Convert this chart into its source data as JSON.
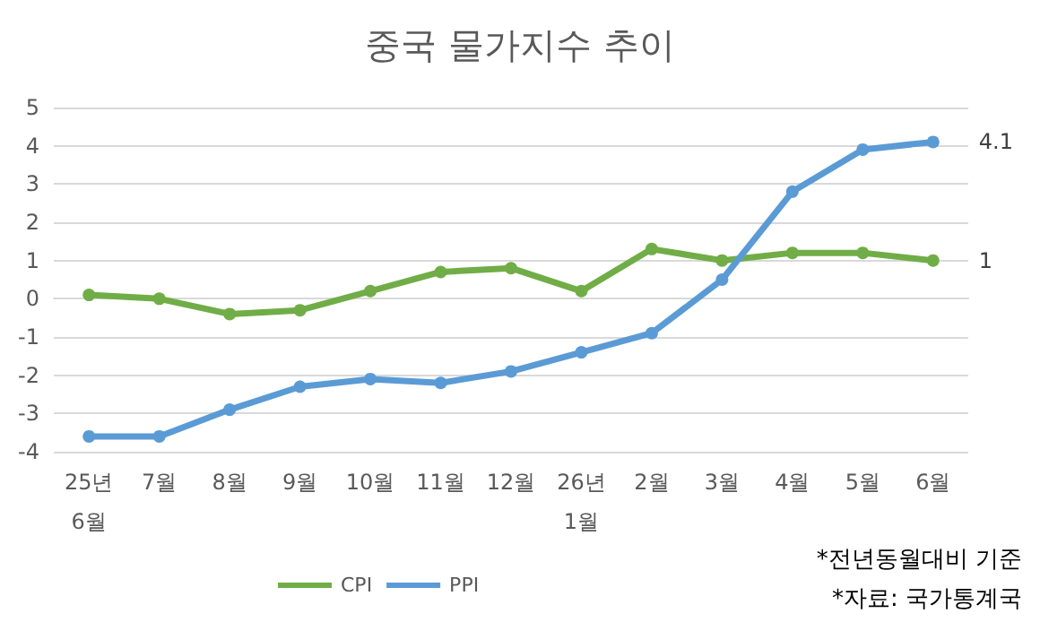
{
  "chart_data": {
    "type": "line",
    "title": "중국 물가지수 추이",
    "categories": [
      "25년\n6월",
      "7월",
      "8월",
      "9월",
      "10월",
      "11월",
      "12월",
      "26년\n1월",
      "2월",
      "3월",
      "4월",
      "5월",
      "6월"
    ],
    "series": [
      {
        "name": "CPI",
        "color": "#70ad47",
        "values": [
          0.1,
          0,
          -0.4,
          -0.3,
          0.2,
          0.7,
          0.8,
          0.2,
          1.3,
          1.0,
          1.2,
          1.2,
          1.0
        ],
        "value_labels": [
          null,
          null,
          null,
          null,
          null,
          null,
          null,
          null,
          null,
          null,
          null,
          null,
          "1"
        ]
      },
      {
        "name": "PPI",
        "color": "#5b9bd5",
        "values": [
          -3.6,
          -3.6,
          -2.9,
          -2.3,
          -2.1,
          -2.2,
          -1.9,
          -1.4,
          -0.9,
          0.5,
          2.8,
          3.9,
          4.1
        ],
        "value_labels": [
          null,
          null,
          null,
          null,
          null,
          null,
          null,
          null,
          null,
          null,
          null,
          null,
          "4.1"
        ]
      }
    ],
    "ylim": [
      -4,
      5
    ],
    "yticks": [
      -4,
      -3,
      -2,
      -1,
      0,
      1,
      2,
      3,
      4,
      5
    ],
    "grid": "y",
    "legend": "bottom",
    "marker": "circle",
    "line_style": "solid",
    "annotations": [
      "*전년동월대비 기준",
      "*자료: 국가통계국"
    ]
  }
}
